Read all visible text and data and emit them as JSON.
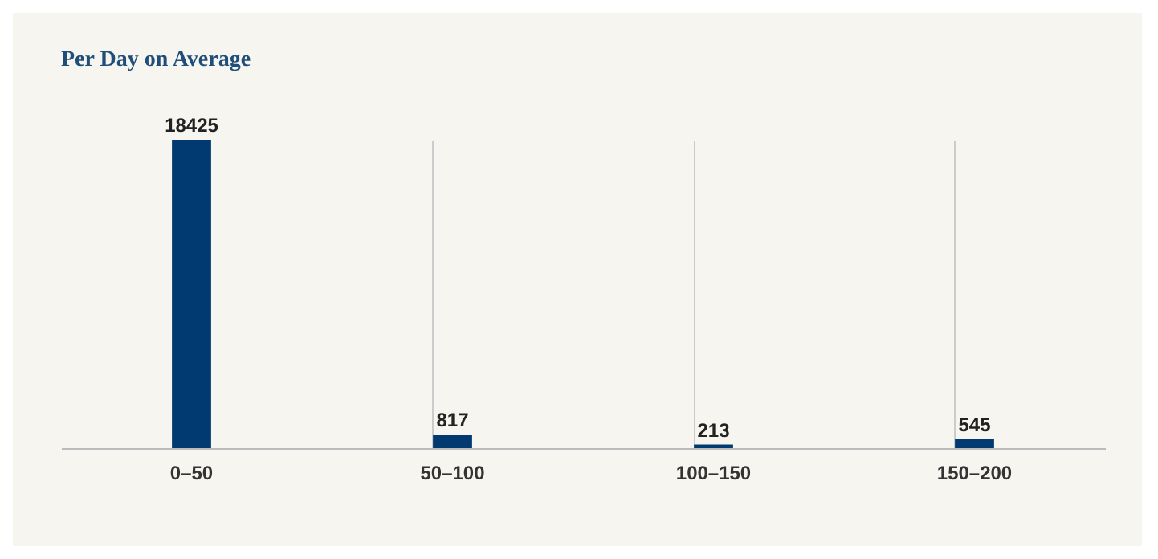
{
  "chart_data": {
    "type": "bar",
    "title": "Per Day on Average",
    "categories": [
      "0–50",
      "50–100",
      "100–150",
      "150–200"
    ],
    "values": [
      18425,
      817,
      213,
      545
    ],
    "color": "#003a70",
    "data_labels": true,
    "grid": "x"
  }
}
